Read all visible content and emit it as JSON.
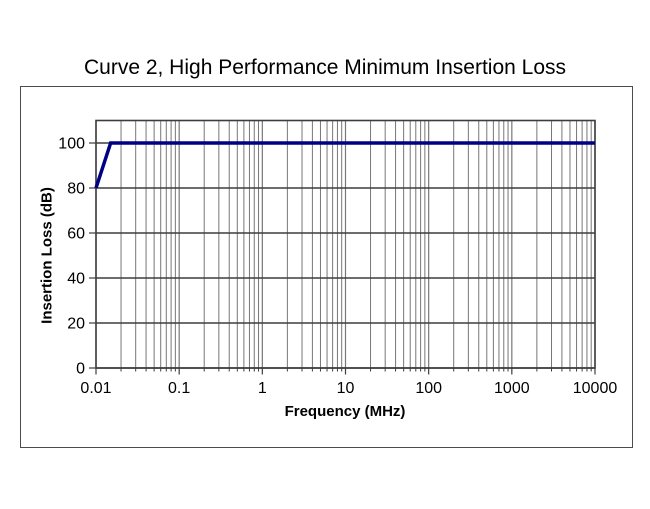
{
  "page": {
    "background": "#ffffff"
  },
  "chart_data": {
    "type": "line",
    "title": "Curve 2, High Performance Minimum Insertion Loss",
    "xlabel": "Frequency (MHz)",
    "ylabel": "Insertion Loss (dB)",
    "x_scale": "log",
    "xlim": [
      0.01,
      10000
    ],
    "ylim": [
      0,
      110
    ],
    "x_ticks": {
      "values": [
        0.01,
        0.1,
        1,
        10,
        100,
        1000,
        10000
      ],
      "labels": [
        "0.01",
        "0.1",
        "1",
        "10",
        "100",
        "1000",
        "10000"
      ]
    },
    "y_ticks": {
      "values": [
        0,
        20,
        40,
        60,
        80,
        100
      ],
      "labels": [
        "0",
        "20",
        "40",
        "60",
        "80",
        "100"
      ]
    },
    "minor_x_multiples": [
      2,
      3,
      4,
      5,
      6,
      7,
      8,
      9
    ],
    "grid": {
      "horizontal_major": true,
      "vertical_major": true,
      "vertical_minor": true
    },
    "legend": "none",
    "series": [
      {
        "name": "Curve 2 minimum insertion loss",
        "color": "#000082",
        "points": [
          [
            0.01,
            80
          ],
          [
            0.015,
            100
          ],
          [
            10000,
            100
          ]
        ]
      }
    ],
    "colors": {
      "curve": "#000082",
      "grid_vertical": "#777777",
      "grid_horizontal": "#3d3d3d",
      "plot_border": "#3d3d3d",
      "tick": "#3d3d3d",
      "text": "#000000",
      "frame_border": "#4c4c4c"
    }
  }
}
